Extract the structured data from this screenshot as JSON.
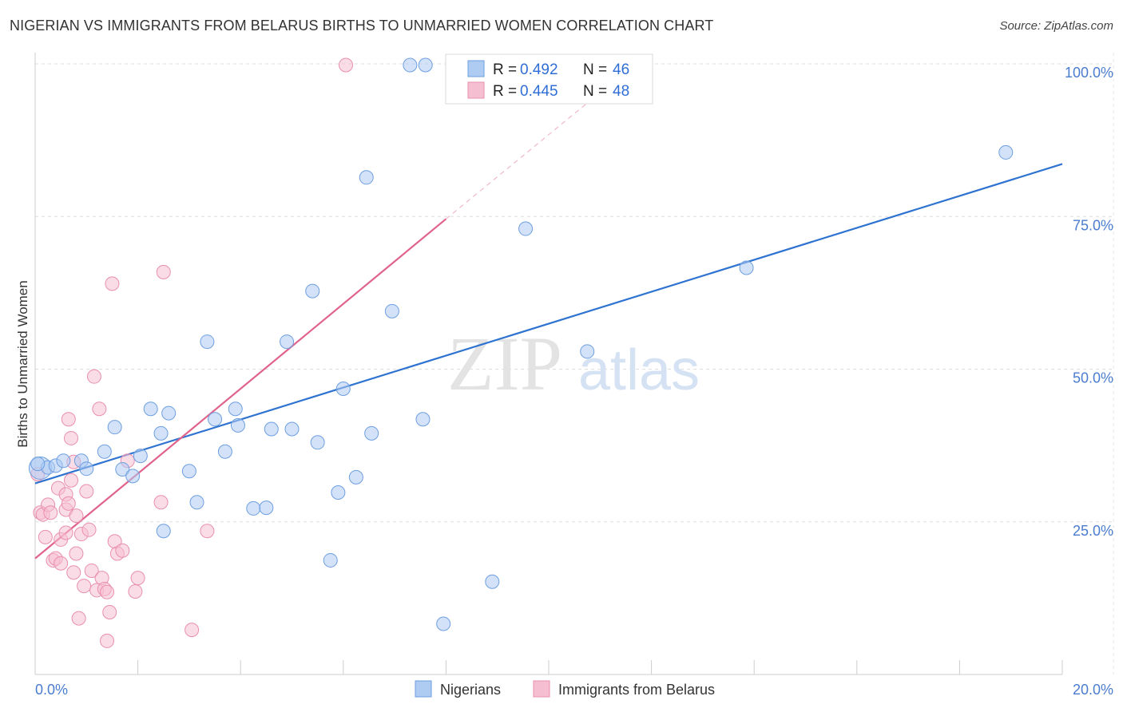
{
  "title": "NIGERIAN VS IMMIGRANTS FROM BELARUS BIRTHS TO UNMARRIED WOMEN CORRELATION CHART",
  "source": "Source: ZipAtlas.com",
  "watermark": {
    "zip": "ZIP",
    "atlas": "atlas"
  },
  "colors": {
    "blue_fill": "#aecbf2",
    "blue_stroke": "#6d9fe0",
    "blue_line": "#2f73d1",
    "pink_fill": "#f6bfd1",
    "pink_stroke": "#e98fae",
    "pink_line": "#e0638b",
    "grid": "#dddddd",
    "axis_text": "#4a7ccf"
  },
  "chart_data": {
    "type": "scatter",
    "title": "NIGERIAN VS IMMIGRANTS FROM BELARUS BIRTHS TO UNMARRIED WOMEN CORRELATION CHART",
    "xlabel": "",
    "ylabel": "Births to Unmarried Women",
    "xlim": [
      0,
      20
    ],
    "ylim": [
      0,
      105
    ],
    "x_tick_labels": [
      "0.0%",
      "20.0%"
    ],
    "y_ticks": [
      25,
      50,
      75,
      100
    ],
    "y_tick_labels": [
      "25.0%",
      "50.0%",
      "75.0%",
      "100.0%"
    ],
    "grid": true,
    "legend_top": [
      {
        "r_label": "R =",
        "r_value": "0.492",
        "n_label": "N =",
        "n_value": "46"
      },
      {
        "r_label": "R =",
        "r_value": "0.445",
        "n_label": "N =",
        "n_value": "48"
      }
    ],
    "series": [
      {
        "name": "Nigerians",
        "color": "blue",
        "trend": {
          "x": [
            0,
            20
          ],
          "y": [
            31.3,
            83.6
          ]
        },
        "points": [
          {
            "x": 0.1,
            "y": 33.8
          },
          {
            "x": 0.25,
            "y": 33.9
          },
          {
            "x": 0.4,
            "y": 34.2
          },
          {
            "x": 0.55,
            "y": 35.0
          },
          {
            "x": 0.9,
            "y": 35.0
          },
          {
            "x": 1.0,
            "y": 33.7
          },
          {
            "x": 1.35,
            "y": 36.5
          },
          {
            "x": 1.55,
            "y": 40.5
          },
          {
            "x": 1.7,
            "y": 33.6
          },
          {
            "x": 1.9,
            "y": 32.5
          },
          {
            "x": 2.05,
            "y": 35.8
          },
          {
            "x": 2.25,
            "y": 43.5
          },
          {
            "x": 2.45,
            "y": 39.5
          },
          {
            "x": 2.6,
            "y": 42.8
          },
          {
            "x": 2.5,
            "y": 23.5
          },
          {
            "x": 3.0,
            "y": 33.3
          },
          {
            "x": 3.15,
            "y": 28.2
          },
          {
            "x": 3.35,
            "y": 54.5
          },
          {
            "x": 3.5,
            "y": 41.8
          },
          {
            "x": 3.7,
            "y": 36.5
          },
          {
            "x": 3.9,
            "y": 43.5
          },
          {
            "x": 3.95,
            "y": 40.8
          },
          {
            "x": 4.25,
            "y": 27.2
          },
          {
            "x": 4.5,
            "y": 27.3
          },
          {
            "x": 4.6,
            "y": 40.2
          },
          {
            "x": 4.9,
            "y": 54.5
          },
          {
            "x": 5.0,
            "y": 40.2
          },
          {
            "x": 5.4,
            "y": 62.8
          },
          {
            "x": 5.5,
            "y": 38.0
          },
          {
            "x": 5.75,
            "y": 18.7
          },
          {
            "x": 5.9,
            "y": 29.8
          },
          {
            "x": 6.0,
            "y": 46.8
          },
          {
            "x": 6.25,
            "y": 32.3
          },
          {
            "x": 6.45,
            "y": 81.4
          },
          {
            "x": 6.55,
            "y": 39.5
          },
          {
            "x": 6.95,
            "y": 59.5
          },
          {
            "x": 7.3,
            "y": 99.8
          },
          {
            "x": 7.6,
            "y": 99.8
          },
          {
            "x": 7.55,
            "y": 41.8
          },
          {
            "x": 7.95,
            "y": 8.3
          },
          {
            "x": 8.9,
            "y": 15.2
          },
          {
            "x": 9.55,
            "y": 73.0
          },
          {
            "x": 10.75,
            "y": 52.9
          },
          {
            "x": 13.85,
            "y": 66.6
          },
          {
            "x": 18.9,
            "y": 85.5
          },
          {
            "x": 0.05,
            "y": 34.5
          }
        ]
      },
      {
        "name": "Immigrants from Belarus",
        "color": "pink",
        "trend": {
          "x": [
            0,
            8.0
          ],
          "y": [
            19.0,
            74.6
          ]
        },
        "trend_dashed": {
          "x": [
            8.0,
            11.1
          ],
          "y": [
            74.6,
            96.0
          ]
        },
        "points": [
          {
            "x": 0.05,
            "y": 32.8
          },
          {
            "x": 0.1,
            "y": 26.5
          },
          {
            "x": 0.15,
            "y": 26.2
          },
          {
            "x": 0.2,
            "y": 22.5
          },
          {
            "x": 0.25,
            "y": 27.8
          },
          {
            "x": 0.3,
            "y": 26.5
          },
          {
            "x": 0.35,
            "y": 18.7
          },
          {
            "x": 0.4,
            "y": 19.0
          },
          {
            "x": 0.45,
            "y": 30.5
          },
          {
            "x": 0.5,
            "y": 18.2
          },
          {
            "x": 0.5,
            "y": 22.1
          },
          {
            "x": 0.6,
            "y": 29.5
          },
          {
            "x": 0.6,
            "y": 27.0
          },
          {
            "x": 0.65,
            "y": 28.0
          },
          {
            "x": 0.6,
            "y": 23.2
          },
          {
            "x": 0.7,
            "y": 31.8
          },
          {
            "x": 0.75,
            "y": 34.8
          },
          {
            "x": 0.8,
            "y": 26.0
          },
          {
            "x": 0.65,
            "y": 41.8
          },
          {
            "x": 0.7,
            "y": 38.7
          },
          {
            "x": 0.75,
            "y": 16.7
          },
          {
            "x": 0.8,
            "y": 19.8
          },
          {
            "x": 0.85,
            "y": 9.2
          },
          {
            "x": 0.9,
            "y": 23.0
          },
          {
            "x": 0.95,
            "y": 14.5
          },
          {
            "x": 1.0,
            "y": 30.0
          },
          {
            "x": 1.05,
            "y": 23.7
          },
          {
            "x": 1.1,
            "y": 17.0
          },
          {
            "x": 1.15,
            "y": 48.8
          },
          {
            "x": 1.2,
            "y": 13.8
          },
          {
            "x": 1.25,
            "y": 43.5
          },
          {
            "x": 1.3,
            "y": 15.8
          },
          {
            "x": 1.35,
            "y": 14.0
          },
          {
            "x": 1.4,
            "y": 13.5
          },
          {
            "x": 1.4,
            "y": 5.5
          },
          {
            "x": 1.45,
            "y": 10.2
          },
          {
            "x": 1.5,
            "y": 64.0
          },
          {
            "x": 1.55,
            "y": 21.8
          },
          {
            "x": 1.6,
            "y": 19.8
          },
          {
            "x": 1.7,
            "y": 20.3
          },
          {
            "x": 1.8,
            "y": 35.0
          },
          {
            "x": 1.95,
            "y": 13.6
          },
          {
            "x": 2.0,
            "y": 15.8
          },
          {
            "x": 2.45,
            "y": 28.2
          },
          {
            "x": 2.5,
            "y": 65.9
          },
          {
            "x": 3.05,
            "y": 7.3
          },
          {
            "x": 3.35,
            "y": 23.5
          },
          {
            "x": 6.05,
            "y": 99.8
          }
        ]
      }
    ]
  },
  "legend_bottom": [
    {
      "label": "Nigerians",
      "color": "blue"
    },
    {
      "label": "Immigrants from Belarus",
      "color": "pink"
    }
  ]
}
